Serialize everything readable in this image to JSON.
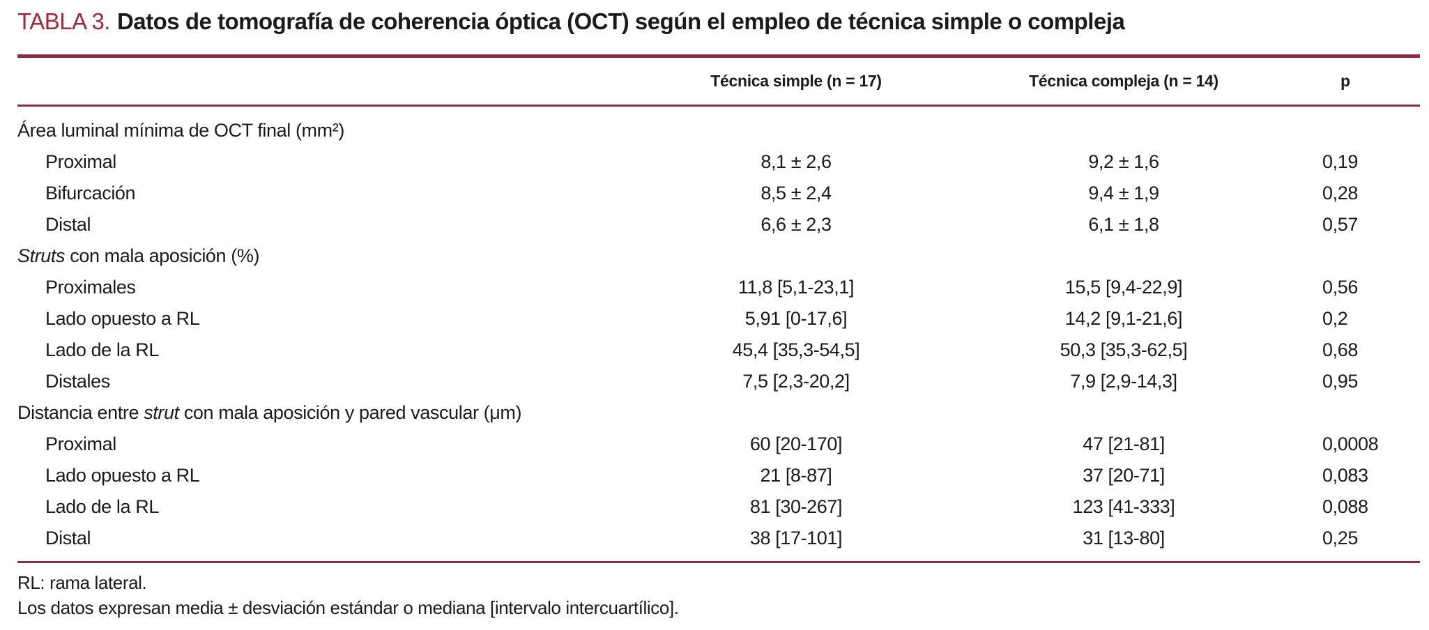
{
  "title": {
    "label": "TABLA 3.",
    "text": "Datos de tomografía de coherencia óptica (OCT) según el empleo de técnica simple o compleja"
  },
  "colors": {
    "accent_title": "#9C2A3F",
    "rule": "#8B2F45",
    "text": "#1B1B1B",
    "background": "#FFFFFF"
  },
  "table": {
    "header": {
      "col_simple": "Técnica simple (n = 17)",
      "col_compleja": "Técnica compleja (n = 14)",
      "col_p": "p"
    },
    "rows": [
      {
        "kind": "section",
        "pre": "Área luminal mínima de OCT final (mm²)"
      },
      {
        "kind": "data",
        "label": "Proximal",
        "simple": "8,1 ± 2,6",
        "compleja": "9,2 ± 1,6",
        "p": "0,19"
      },
      {
        "kind": "data",
        "label": "Bifurcación",
        "simple": "8,5 ± 2,4",
        "compleja": "9,4 ± 1,9",
        "p": "0,28"
      },
      {
        "kind": "data",
        "label": "Distal",
        "simple": "6,6 ± 2,3",
        "compleja": "6,1 ± 1,8",
        "p": "0,57"
      },
      {
        "kind": "section",
        "it": "Struts",
        "post": " con mala aposición (%)"
      },
      {
        "kind": "data",
        "label": "Proximales",
        "simple": "11,8 [5,1-23,1]",
        "compleja": "15,5 [9,4-22,9]",
        "p": "0,56"
      },
      {
        "kind": "data",
        "label": "Lado opuesto a RL",
        "simple": "5,91 [0-17,6]",
        "compleja": "14,2 [9,1-21,6]",
        "p": "0,2"
      },
      {
        "kind": "data",
        "label": "Lado de la RL",
        "simple": "45,4 [35,3-54,5]",
        "compleja": "50,3 [35,3-62,5]",
        "p": "0,68"
      },
      {
        "kind": "data",
        "label": "Distales",
        "simple": "7,5 [2,3-20,2]",
        "compleja": "7,9 [2,9-14,3]",
        "p": "0,95"
      },
      {
        "kind": "section",
        "pre": "Distancia entre ",
        "it": "strut",
        "post": " con mala aposición y pared vascular (μm)"
      },
      {
        "kind": "data",
        "label": "Proximal",
        "simple": "60 [20-170]",
        "compleja": "47 [21-81]",
        "p": "0,0008"
      },
      {
        "kind": "data",
        "label": "Lado opuesto a RL",
        "simple": "21 [8-87]",
        "compleja": "37 [20-71]",
        "p": "0,083"
      },
      {
        "kind": "data",
        "label": "Lado de la RL",
        "simple": "81 [30-267]",
        "compleja": "123 [41-333]",
        "p": "0,088"
      },
      {
        "kind": "data",
        "label": "Distal",
        "simple": "38 [17-101]",
        "compleja": "31 [13-80]",
        "p": "0,25"
      }
    ]
  },
  "footnotes": {
    "line1": "RL: rama lateral.",
    "line2": "Los datos expresan media ± desviación estándar o mediana [intervalo intercuartílico]."
  }
}
